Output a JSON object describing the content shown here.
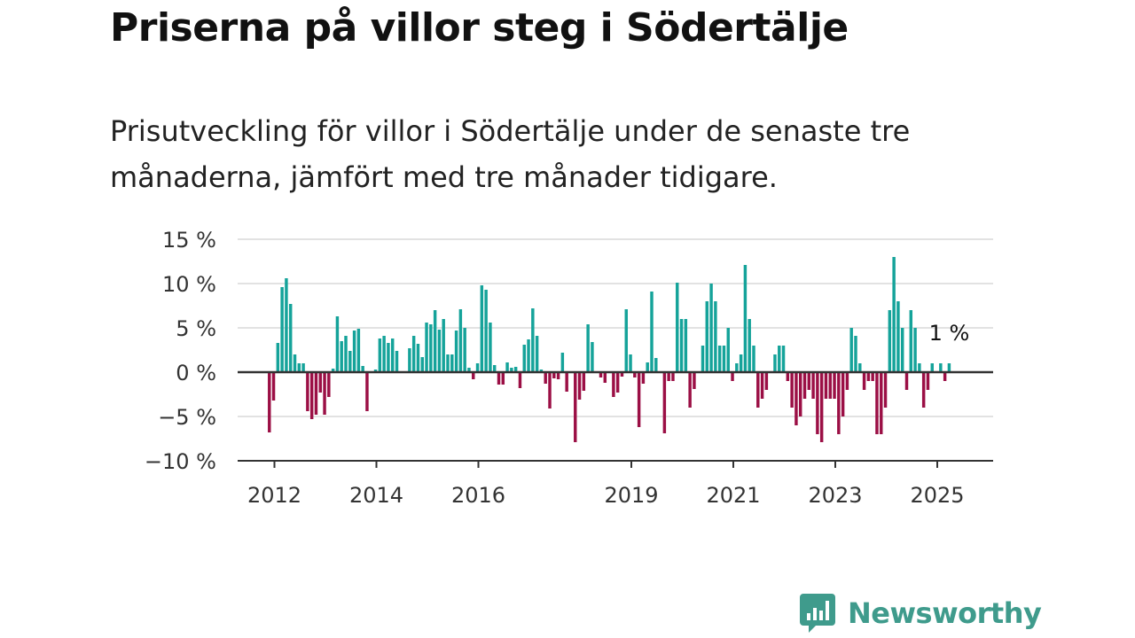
{
  "header": {
    "title": "Priserna på villor steg i Södertälje",
    "subtitle": "Prisutveckling för villor i Södertälje under de senaste tre månaderna, jämfört med tre månader tidigare."
  },
  "logo": {
    "text": "Newsworthy",
    "icon": "newsworthy-logo-icon",
    "color": "#3f9b8c"
  },
  "chart_data": {
    "type": "bar",
    "ylim": [
      -10,
      15
    ],
    "y_ticks": [
      15,
      10,
      5,
      0,
      -5,
      -10
    ],
    "y_tick_labels": [
      "15 %",
      "10 %",
      "5 %",
      "0 %",
      "−5 %",
      "−10 %"
    ],
    "x_tick_labels": [
      "2012",
      "2014",
      "2016",
      "2019",
      "2021",
      "2023",
      "2025"
    ],
    "x_tick_positions": [
      2012,
      2014,
      2016,
      2019,
      2021,
      2023,
      2025
    ],
    "x_start": 2011.9,
    "months_per_bar": 1,
    "grid": true,
    "positive_color": "#15a39a",
    "negative_color": "#9b0f45",
    "end_label": "1 %",
    "values": [
      -6.8,
      -3.2,
      3.3,
      9.6,
      10.6,
      7.7,
      2.0,
      1.0,
      1.0,
      -4.4,
      -5.3,
      -4.8,
      -2.3,
      -4.8,
      -2.8,
      0.4,
      6.3,
      3.5,
      4.1,
      2.4,
      4.7,
      4.9,
      0.7,
      -4.4,
      0.0,
      0.3,
      3.8,
      4.1,
      3.3,
      3.8,
      2.4,
      0.0,
      0.0,
      2.7,
      4.1,
      3.2,
      1.7,
      5.6,
      5.4,
      7.0,
      4.8,
      6.0,
      2.0,
      2.0,
      4.7,
      7.1,
      5.0,
      0.5,
      -0.8,
      1.0,
      9.8,
      9.3,
      5.6,
      0.8,
      -1.4,
      -1.4,
      1.1,
      0.5,
      0.6,
      -1.8,
      3.1,
      3.7,
      7.2,
      4.1,
      0.3,
      -1.3,
      -4.1,
      -0.7,
      -0.8,
      2.2,
      -2.2,
      0.0,
      -7.9,
      -3.1,
      -2.1,
      5.4,
      3.4,
      0.0,
      -0.6,
      -1.2,
      0.0,
      -2.8,
      -2.3,
      -0.5,
      7.1,
      2.0,
      -0.6,
      -6.2,
      -1.3,
      1.1,
      9.1,
      1.6,
      0.0,
      -6.9,
      -1.0,
      -1.0,
      10.1,
      6.0,
      6.0,
      -4.0,
      -1.9,
      0.0,
      3.0,
      8.0,
      10.0,
      8.0,
      3.0,
      3.0,
      5.0,
      -1.0,
      1.0,
      2.0,
      12.1,
      6.0,
      3.0,
      -4.0,
      -3.0,
      -2.0,
      0.0,
      2.0,
      3.0,
      3.0,
      -1.0,
      -4.0,
      -6.0,
      -5.0,
      -3.0,
      -2.0,
      -3.0,
      -7.0,
      -7.9,
      -3.0,
      -3.0,
      -3.0,
      -7.0,
      -5.0,
      -2.0,
      5.0,
      4.1,
      1.0,
      -2.0,
      -1.0,
      -1.0,
      -7.0,
      -7.0,
      -4.0,
      7.0,
      13.0,
      8.0,
      5.0,
      -2.0,
      7.0,
      5.0,
      1.0,
      -4.0,
      -2.0,
      1.0,
      0.0,
      1.0,
      -1.0,
      1.0
    ]
  }
}
